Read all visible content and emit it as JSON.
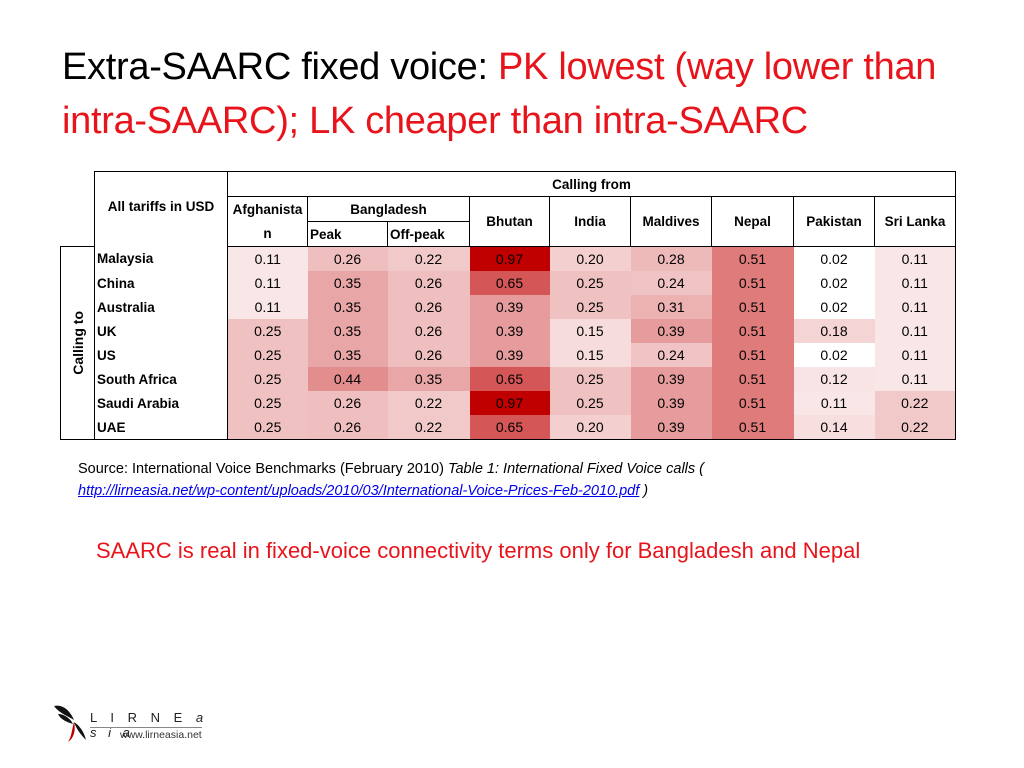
{
  "title": {
    "part_black": "Extra-SAARC fixed voice: ",
    "part_red": "PK lowest (way lower than intra-SAARC); LK cheaper than intra-SAARC"
  },
  "table": {
    "corner_label": "All tariffs in USD",
    "calling_from": "Calling from",
    "calling_to": "Calling to",
    "columns": [
      "Afghanistan",
      "Bangladesh",
      "Bhutan",
      "India",
      "Maldives",
      "Nepal",
      "Pakistan",
      "Sri Lanka"
    ],
    "afghanistan_label": "Afghanista n",
    "bangladesh_sub": [
      "Peak",
      "Off-peak"
    ],
    "rows": [
      {
        "label": "Malaysia",
        "values": [
          "0.11",
          "0.26",
          "0.22",
          "0.97",
          "0.20",
          "0.28",
          "0.51",
          "0.02",
          "0.11"
        ]
      },
      {
        "label": "China",
        "values": [
          "0.11",
          "0.35",
          "0.26",
          "0.65",
          "0.25",
          "0.24",
          "0.51",
          "0.02",
          "0.11"
        ]
      },
      {
        "label": "Australia",
        "values": [
          "0.11",
          "0.35",
          "0.26",
          "0.39",
          "0.25",
          "0.31",
          "0.51",
          "0.02",
          "0.11"
        ]
      },
      {
        "label": "UK",
        "values": [
          "0.25",
          "0.35",
          "0.26",
          "0.39",
          "0.15",
          "0.39",
          "0.51",
          "0.18",
          "0.11"
        ]
      },
      {
        "label": "US",
        "values": [
          "0.25",
          "0.35",
          "0.26",
          "0.39",
          "0.15",
          "0.24",
          "0.51",
          "0.02",
          "0.11"
        ]
      },
      {
        "label": "South Africa",
        "values": [
          "0.25",
          "0.44",
          "0.35",
          "0.65",
          "0.25",
          "0.39",
          "0.51",
          "0.12",
          "0.11"
        ]
      },
      {
        "label": "Saudi Arabia",
        "values": [
          "0.25",
          "0.26",
          "0.22",
          "0.97",
          "0.25",
          "0.39",
          "0.51",
          "0.11",
          "0.22"
        ]
      },
      {
        "label": "UAE",
        "values": [
          "0.25",
          "0.26",
          "0.22",
          "0.65",
          "0.20",
          "0.39",
          "0.51",
          "0.14",
          "0.22"
        ]
      }
    ],
    "heat_colors": {
      "low": "#ffffff",
      "high": "#c00000"
    }
  },
  "source": {
    "prefix": "Source: International Voice Benchmarks (February 2010) ",
    "italic": "Table 1: International Fixed Voice calls (",
    "link": "http://lirneasia.net/wp-content/uploads/2010/03/International-Voice-Prices-Feb-2010.pdf",
    "suffix": " )"
  },
  "note": "SAARC is real in fixed-voice connectivity terms only for Bangladesh and Nepal",
  "logo": {
    "name_main": "L I R N E",
    "name_suffix": "a s i a",
    "url": "www.lirneasia.net"
  },
  "colors": {
    "accent_red": "#e8141c"
  }
}
